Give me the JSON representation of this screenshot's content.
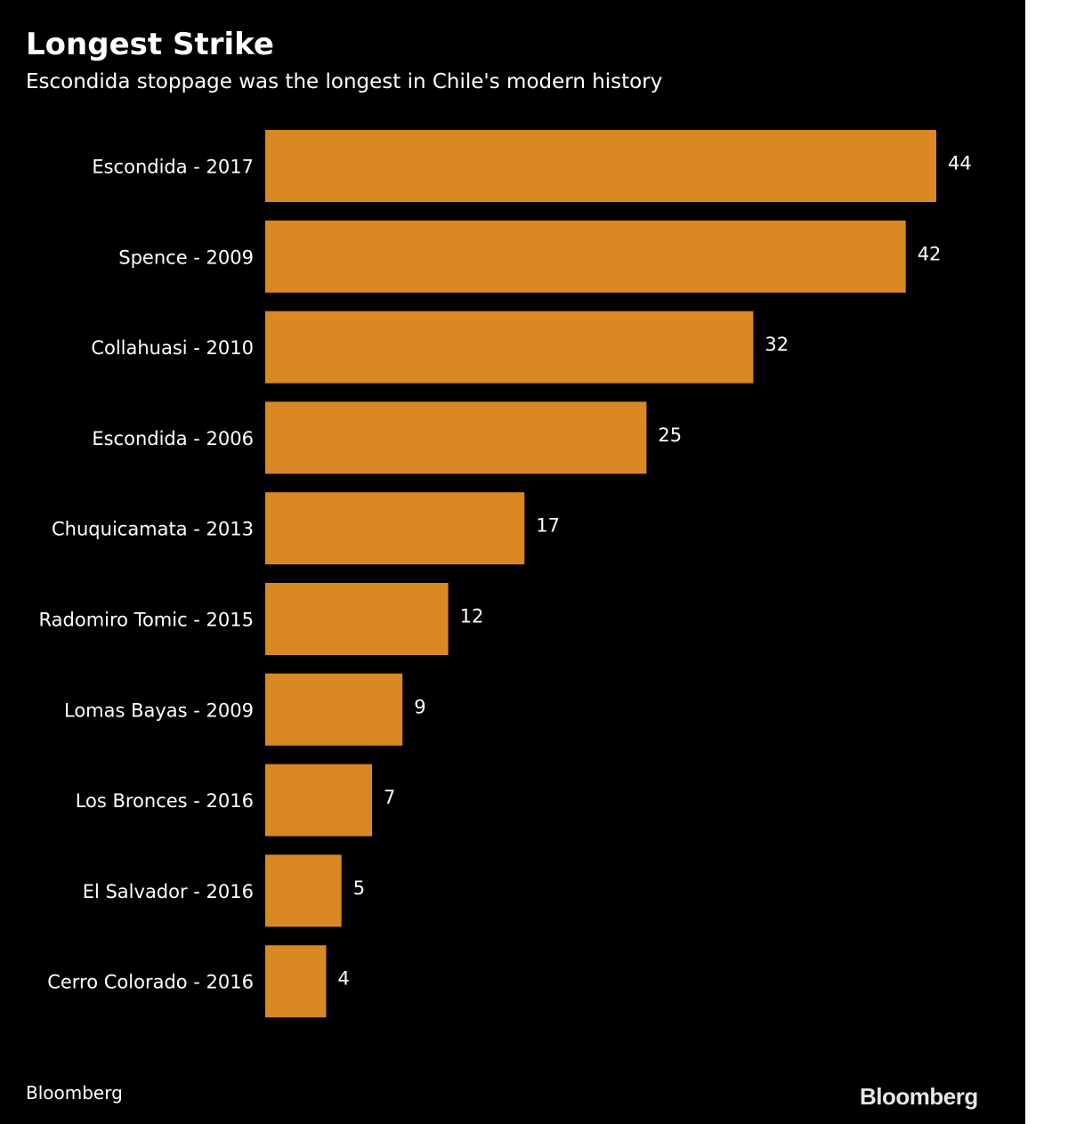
{
  "chart_data": {
    "type": "bar",
    "orientation": "horizontal",
    "title": "Longest Strike",
    "subtitle": "Escondida stoppage was the longest in Chile's modern history",
    "categories": [
      "Escondida - 2017",
      "Spence - 2009",
      "Collahuasi - 2010",
      "Escondida - 2006",
      "Chuquicamata - 2013",
      "Radomiro Tomic - 2015",
      "Lomas Bayas - 2009",
      "Los Bronces - 2016",
      "El Salvador - 2016",
      "Cerro Colorado - 2016"
    ],
    "values": [
      44,
      42,
      32,
      25,
      17,
      12,
      9,
      7,
      5,
      4
    ],
    "data_labels": [
      "44",
      "42",
      "32",
      "25",
      "17",
      "12",
      "9",
      "7",
      "5",
      "4"
    ],
    "xlim": [
      0,
      44
    ],
    "grid": false,
    "legend": "none",
    "bar_color": "#d98823",
    "background_color": "#000000",
    "text_color": "#ffffff"
  },
  "footer": {
    "source": "Bloomberg",
    "logo_text": "Bloomberg"
  }
}
